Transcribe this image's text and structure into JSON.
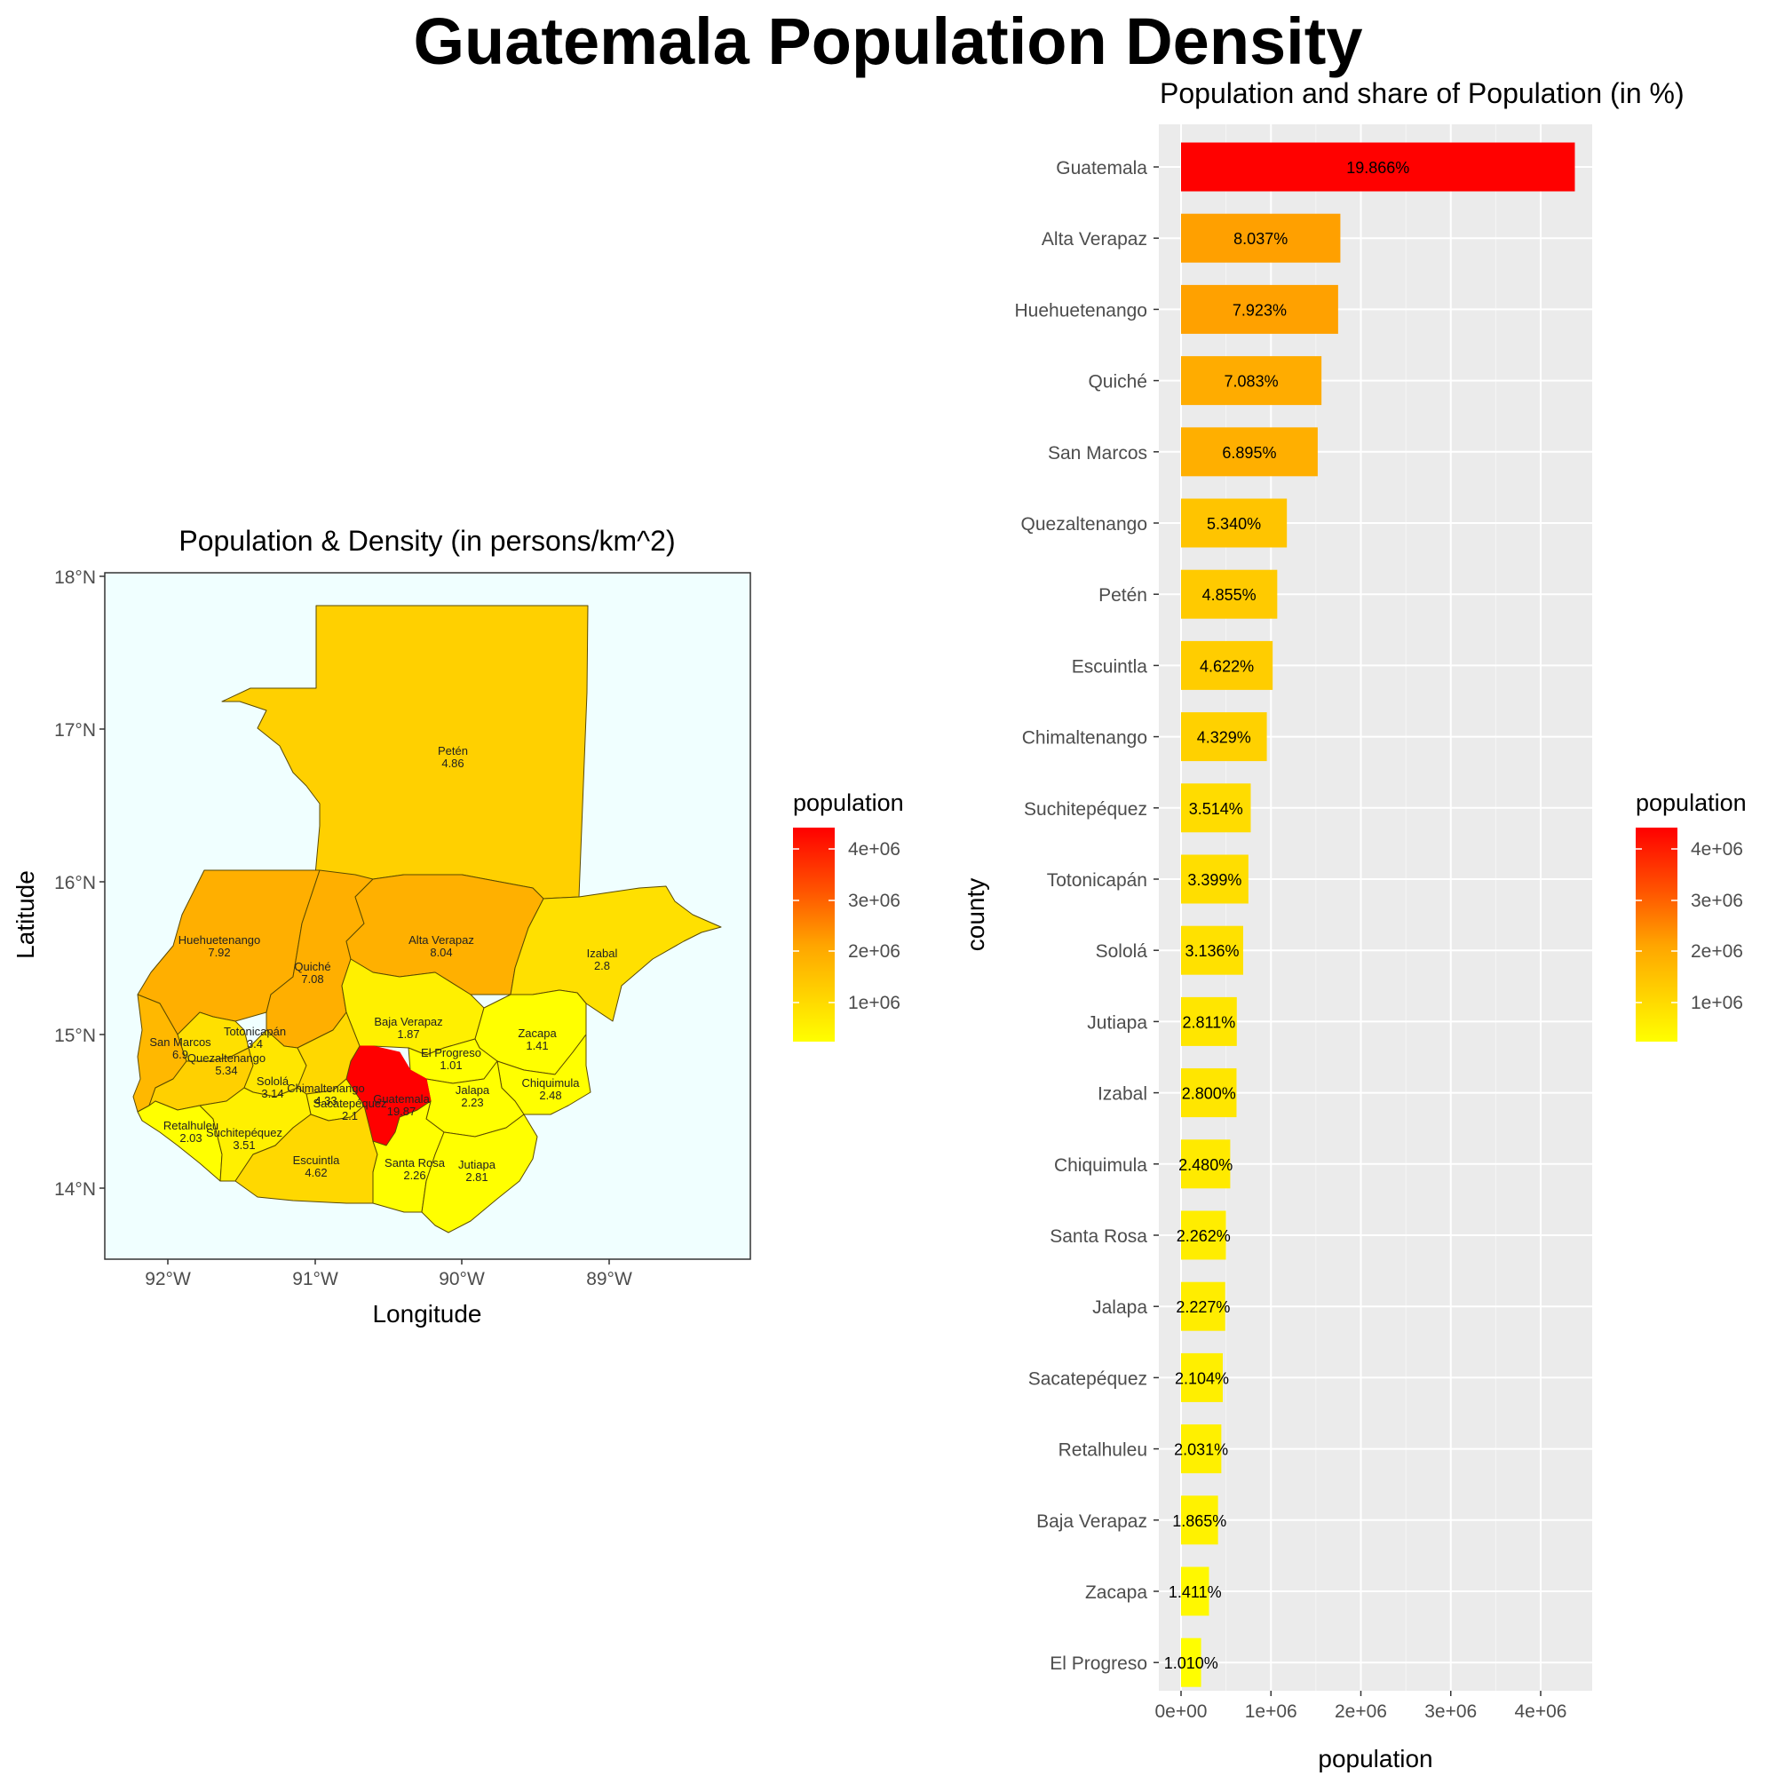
{
  "page": {
    "title": "Guatemala Population Density"
  },
  "map": {
    "title": "Population & Density (in persons/km^2)",
    "xlabel": "Longitude",
    "ylabel": "Latitude",
    "x_ticks": [
      "92°W",
      "91°W",
      "90°W",
      "89°W"
    ],
    "y_ticks": [
      "18°N",
      "17°N",
      "16°N",
      "15°N",
      "14°N"
    ],
    "background_color": "#F0FFFF",
    "regions": [
      {
        "name": "Petén",
        "density": "4.86"
      },
      {
        "name": "Huehuetenango",
        "density": "7.92"
      },
      {
        "name": "Quiché",
        "density": "7.08"
      },
      {
        "name": "Alta Verapaz",
        "density": "8.04"
      },
      {
        "name": "Izabal",
        "density": "2.8"
      },
      {
        "name": "Baja Verapaz",
        "density": "1.87"
      },
      {
        "name": "Zacapa",
        "density": "1.41"
      },
      {
        "name": "El Progreso",
        "density": "1.01"
      },
      {
        "name": "San Marcos",
        "density": "6.9"
      },
      {
        "name": "Totonicapán",
        "density": "3.4"
      },
      {
        "name": "Quezaltenango",
        "density": "5.34"
      },
      {
        "name": "Sololá",
        "density": "3.14"
      },
      {
        "name": "Chimaltenango",
        "density": "4.33"
      },
      {
        "name": "Sacatepéquez",
        "density": "2.1"
      },
      {
        "name": "Guatemala",
        "density": "19.87"
      },
      {
        "name": "Jalapa",
        "density": "2.23"
      },
      {
        "name": "Chiquimula",
        "density": "2.48"
      },
      {
        "name": "Retalhuleu",
        "density": "2.03"
      },
      {
        "name": "Suchitepéquez",
        "density": "3.51"
      },
      {
        "name": "Escuintla",
        "density": "4.62"
      },
      {
        "name": "Santa Rosa",
        "density": "2.26"
      },
      {
        "name": "Jutiapa",
        "density": "2.81"
      }
    ]
  },
  "legend": {
    "title": "population",
    "ticks": [
      "4e+06",
      "3e+06",
      "2e+06",
      "1e+06"
    ],
    "colors": [
      "#FF0000",
      "#FF8000",
      "#FFC000",
      "#FFFF00"
    ]
  },
  "chart_data": {
    "type": "bar",
    "orientation": "horizontal",
    "title": "Population and share of Population (in %)",
    "xlabel": "population",
    "ylabel": "county",
    "xlim": [
      0,
      4500000
    ],
    "x_ticks": [
      "0e+00",
      "1e+06",
      "2e+06",
      "3e+06",
      "4e+06"
    ],
    "grid": true,
    "legend_position": "right",
    "categories": [
      "Guatemala",
      "Alta Verapaz",
      "Huehuetenango",
      "Quiché",
      "San Marcos",
      "Quezaltenango",
      "Petén",
      "Escuintla",
      "Chimaltenango",
      "Suchitepéquez",
      "Totonicapán",
      "Sololá",
      "Jutiapa",
      "Izabal",
      "Chiquimula",
      "Santa Rosa",
      "Jalapa",
      "Sacatepéquez",
      "Retalhuleu",
      "Baja Verapaz",
      "Zacapa",
      "El Progreso"
    ],
    "values": [
      4380000,
      1772000,
      1747000,
      1562000,
      1520000,
      1177000,
      1070000,
      1019000,
      954000,
      775000,
      749000,
      691000,
      620000,
      617000,
      547000,
      499000,
      491000,
      464000,
      448000,
      411000,
      311000,
      223000
    ],
    "labels": [
      "19.866%",
      "8.037%",
      "7.923%",
      "7.083%",
      "6.895%",
      "5.340%",
      "4.855%",
      "4.622%",
      "4.329%",
      "3.514%",
      "3.399%",
      "3.136%",
      "2.811%",
      "2.800%",
      "2.480%",
      "2.262%",
      "2.227%",
      "2.104%",
      "2.031%",
      "1.865%",
      "1.411%",
      "1.010%"
    ]
  }
}
